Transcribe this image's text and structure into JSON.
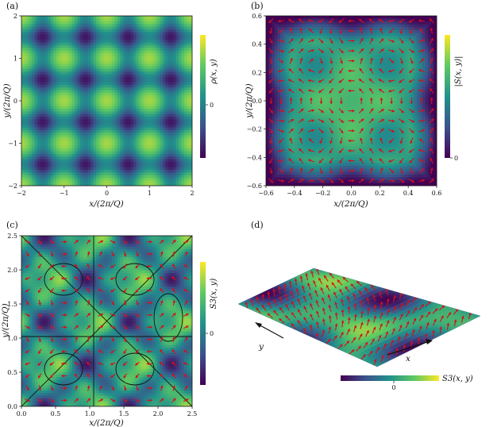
{
  "chart_data": [
    {
      "type": "heatmap",
      "panel_label": "(a)",
      "xlabel": "x/(2π/Q)",
      "ylabel": "y/(2π/Q)",
      "xlim": [
        -2,
        2
      ],
      "ylim": [
        -2,
        2
      ],
      "xticks": [
        "−2",
        "−1",
        "0",
        "1",
        "2"
      ],
      "yticks": [
        "−2",
        "−1",
        "0",
        "1",
        "2"
      ],
      "colorbar": {
        "label": "ρ(x, y)",
        "ticks": [
          "0"
        ],
        "colormap": "viridis"
      }
    },
    {
      "type": "heatmap",
      "panel_label": "(b)",
      "xlabel": "x/(2π/Q)",
      "ylabel": "y/(2π/Q)",
      "xlim": [
        -0.6,
        0.6
      ],
      "ylim": [
        -0.6,
        0.6
      ],
      "xticks": [
        "−0.6",
        "−0.4",
        "−0.2",
        "0.0",
        "0.2",
        "0.4",
        "0.6"
      ],
      "yticks": [
        "−0.6",
        "−0.4",
        "−0.2",
        "0.0",
        "0.2",
        "0.4",
        "0.6"
      ],
      "overlay": "red arrows (in-plane vector field)",
      "colorbar": {
        "label": "|S(x, y)|",
        "ticks": [
          "0"
        ],
        "colormap": "viridis"
      }
    },
    {
      "type": "heatmap",
      "panel_label": "(c)",
      "xlabel": "x/(2π/Q)",
      "ylabel": "y/(2π/Q)",
      "xlim": [
        0,
        2.5
      ],
      "ylim": [
        0,
        2.5
      ],
      "xticks": [
        "0.0",
        "0.5",
        "1.0",
        "1.5",
        "2.0",
        "2.5"
      ],
      "yticks": [
        "0.0",
        "0.5",
        "1.0",
        "1.5",
        "2.0",
        "2.5"
      ],
      "overlay": "red arrows and black contour lines",
      "colorbar": {
        "label": "S3(x, y)",
        "ticks": [
          "0"
        ],
        "colormap": "viridis"
      }
    },
    {
      "type": "surface-3d",
      "panel_label": "(d)",
      "axis_labels": [
        "y",
        "x"
      ],
      "overlay": "red arrows on tilted surface",
      "colorbar": {
        "label": "S3(x, y)",
        "ticks": [
          "0"
        ],
        "colormap": "viridis",
        "orientation": "horizontal"
      }
    }
  ],
  "colors": {
    "arrow": "#d4101a",
    "contour": "#111111",
    "colormap": "viridis"
  }
}
